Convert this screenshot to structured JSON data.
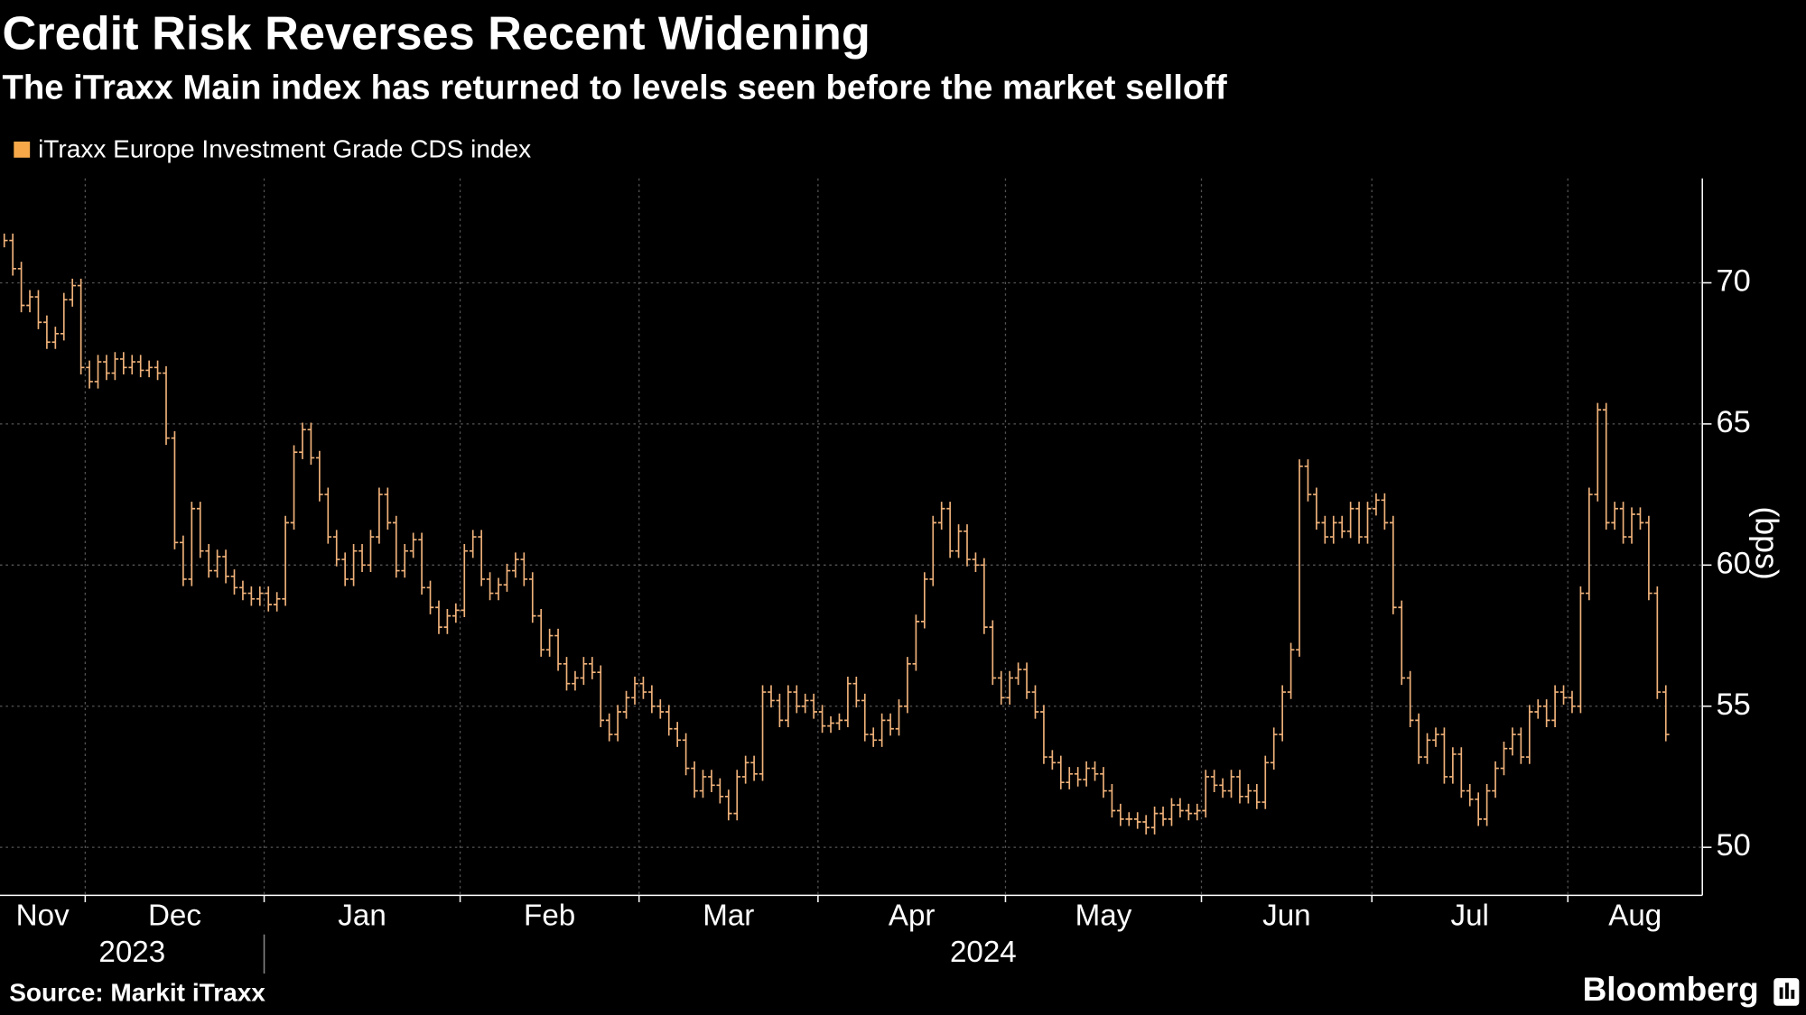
{
  "chart_data": {
    "type": "range-bar",
    "title": "Credit Risk Reverses Recent Widening",
    "subtitle": "The iTraxx Main index has returned to levels seen before the market selloff",
    "y_axis_label": "(bps)",
    "source": "Source: Markit iTraxx",
    "brand": "Bloomberg",
    "years": [
      "2023",
      "2024"
    ],
    "categories": [
      "Nov",
      null,
      null,
      null,
      null,
      null,
      null,
      null,
      null,
      null,
      "Dec",
      null,
      null,
      null,
      null,
      null,
      null,
      null,
      null,
      null,
      null,
      null,
      null,
      null,
      null,
      null,
      null,
      null,
      null,
      null,
      null,
      "Jan",
      null,
      null,
      null,
      null,
      null,
      null,
      null,
      null,
      null,
      null,
      null,
      null,
      null,
      null,
      null,
      null,
      null,
      null,
      null,
      null,
      null,
      null,
      "Feb",
      null,
      null,
      null,
      null,
      null,
      null,
      null,
      null,
      null,
      null,
      null,
      null,
      null,
      null,
      null,
      null,
      null,
      null,
      null,
      null,
      "Mar",
      null,
      null,
      null,
      null,
      null,
      null,
      null,
      null,
      null,
      null,
      null,
      null,
      null,
      null,
      null,
      null,
      null,
      null,
      null,
      null,
      "Apr",
      null,
      null,
      null,
      null,
      null,
      null,
      null,
      null,
      null,
      null,
      null,
      null,
      null,
      null,
      null,
      null,
      null,
      null,
      null,
      null,
      null,
      "May",
      null,
      null,
      null,
      null,
      null,
      null,
      null,
      null,
      null,
      null,
      null,
      null,
      null,
      null,
      null,
      null,
      null,
      null,
      null,
      null,
      null,
      null,
      "Jun",
      null,
      null,
      null,
      null,
      null,
      null,
      null,
      null,
      null,
      null,
      null,
      null,
      null,
      null,
      null,
      null,
      null,
      null,
      null,
      "Jul",
      null,
      null,
      null,
      null,
      null,
      null,
      null,
      null,
      null,
      null,
      null,
      null,
      null,
      null,
      null,
      null,
      null,
      null,
      null,
      null,
      null,
      null,
      "Aug",
      null,
      null,
      null,
      null,
      null,
      null,
      null,
      null,
      null,
      null,
      null
    ],
    "series": [
      {
        "name": "iTraxx Europe Investment Grade CDS index",
        "color": "#f0b27a",
        "legend_color": "#f7a94a",
        "values": [
          71.5,
          70.5,
          69.2,
          69.5,
          68.6,
          67.9,
          68.2,
          69.4,
          69.9,
          67.0,
          66.5,
          67.2,
          66.8,
          67.3,
          67.0,
          67.2,
          66.9,
          67.0,
          66.8,
          64.5,
          60.8,
          59.5,
          62.0,
          60.5,
          59.8,
          60.3,
          59.6,
          59.2,
          59.0,
          58.8,
          59.0,
          58.6,
          58.8,
          61.5,
          64.0,
          64.8,
          63.8,
          62.5,
          61.0,
          60.2,
          59.5,
          60.5,
          60.0,
          61.0,
          62.5,
          61.5,
          59.8,
          60.5,
          60.9,
          59.2,
          58.5,
          57.8,
          58.2,
          58.4,
          60.5,
          61.0,
          59.5,
          59.0,
          59.3,
          59.8,
          60.2,
          59.5,
          58.2,
          57.0,
          57.5,
          56.5,
          55.8,
          56.0,
          56.5,
          56.2,
          54.5,
          54.0,
          54.8,
          55.3,
          55.8,
          55.5,
          55.0,
          54.8,
          54.2,
          53.8,
          52.8,
          52.0,
          52.5,
          52.2,
          51.8,
          51.2,
          52.5,
          53.0,
          52.6,
          55.5,
          55.2,
          54.5,
          55.5,
          55.0,
          55.2,
          54.8,
          54.3,
          54.4,
          54.5,
          55.8,
          55.2,
          54.0,
          53.8,
          54.5,
          54.2,
          55.0,
          56.5,
          58.0,
          59.5,
          61.5,
          62.0,
          60.5,
          61.2,
          60.2,
          60.0,
          57.8,
          56.0,
          55.3,
          56.0,
          56.3,
          55.5,
          54.8,
          53.2,
          53.0,
          52.3,
          52.6,
          52.4,
          52.8,
          52.6,
          52.0,
          51.3,
          51.0,
          51.0,
          50.9,
          50.7,
          51.2,
          51.0,
          51.5,
          51.3,
          51.2,
          51.3,
          52.5,
          52.2,
          52.0,
          52.5,
          51.8,
          52.0,
          51.6,
          53.0,
          54.0,
          55.5,
          57.0,
          63.5,
          62.5,
          61.5,
          61.0,
          61.5,
          61.2,
          62.0,
          61.0,
          62.0,
          62.3,
          61.5,
          58.5,
          56.0,
          54.5,
          53.2,
          53.8,
          54.0,
          52.5,
          53.3,
          52.0,
          51.7,
          51.0,
          52.0,
          52.8,
          53.5,
          54.0,
          53.2,
          54.8,
          55.0,
          54.5,
          55.5,
          55.3,
          55.0,
          59.0,
          62.5,
          65.5,
          61.5,
          62.0,
          61.0,
          61.8,
          61.5,
          59.0,
          55.5,
          54.0
        ]
      }
    ],
    "ylim": [
      48.3,
      73.7
    ],
    "yticks": [
      50,
      55,
      60,
      65,
      70
    ],
    "grid": true
  }
}
